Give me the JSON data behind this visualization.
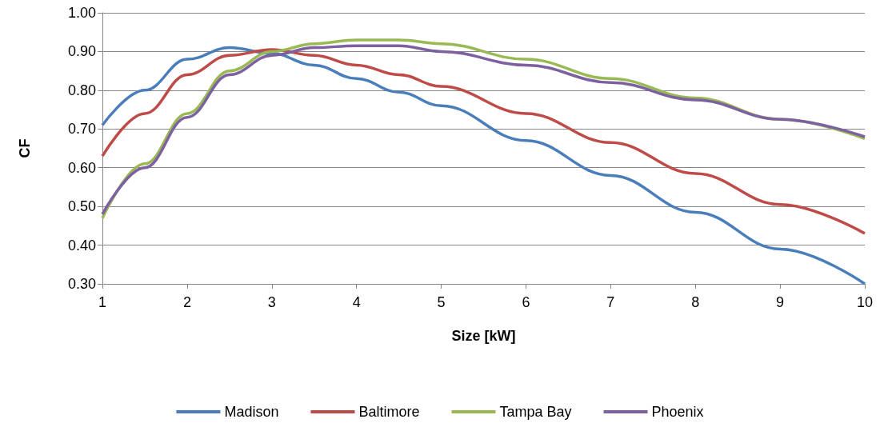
{
  "chart_data": {
    "type": "line",
    "xlabel": "Size [kW]",
    "ylabel": "CF",
    "x": [
      1,
      1.5,
      2,
      2.5,
      3,
      3.5,
      4,
      4.5,
      5,
      6,
      7,
      8,
      9,
      10
    ],
    "series": [
      {
        "name": "Madison",
        "color": "#4a7ebb",
        "values": [
          0.71,
          0.8,
          0.88,
          0.91,
          0.895,
          0.865,
          0.83,
          0.795,
          0.76,
          0.67,
          0.58,
          0.485,
          0.39,
          0.3
        ]
      },
      {
        "name": "Baltimore",
        "color": "#be4b48",
        "values": [
          0.63,
          0.74,
          0.84,
          0.89,
          0.905,
          0.89,
          0.865,
          0.84,
          0.81,
          0.74,
          0.665,
          0.585,
          0.505,
          0.43
        ]
      },
      {
        "name": "Tampa Bay",
        "color": "#98b954",
        "values": [
          0.47,
          0.61,
          0.74,
          0.85,
          0.9,
          0.92,
          0.93,
          0.93,
          0.92,
          0.88,
          0.83,
          0.78,
          0.725,
          0.675
        ]
      },
      {
        "name": "Phoenix",
        "color": "#7d60a0",
        "values": [
          0.48,
          0.6,
          0.73,
          0.84,
          0.89,
          0.91,
          0.915,
          0.915,
          0.9,
          0.865,
          0.82,
          0.775,
          0.725,
          0.68
        ]
      }
    ],
    "xlim": [
      1,
      10
    ],
    "xticks": [
      1,
      2,
      3,
      4,
      5,
      6,
      7,
      8,
      9,
      10
    ],
    "ylim": [
      0.3,
      1.0
    ],
    "yticks": [
      {
        "value": 0.3,
        "label": "0.30"
      },
      {
        "value": 0.4,
        "label": "0.40"
      },
      {
        "value": 0.5,
        "label": "0.50"
      },
      {
        "value": 0.6,
        "label": "0.60"
      },
      {
        "value": 0.7,
        "label": "0.70"
      },
      {
        "value": 0.8,
        "label": "0.80"
      },
      {
        "value": 0.9,
        "label": "0.90"
      },
      {
        "value": 1.0,
        "label": "1.00"
      }
    ],
    "grid": "y",
    "legend": "bottom",
    "marker": "none",
    "line_style": "solid"
  }
}
